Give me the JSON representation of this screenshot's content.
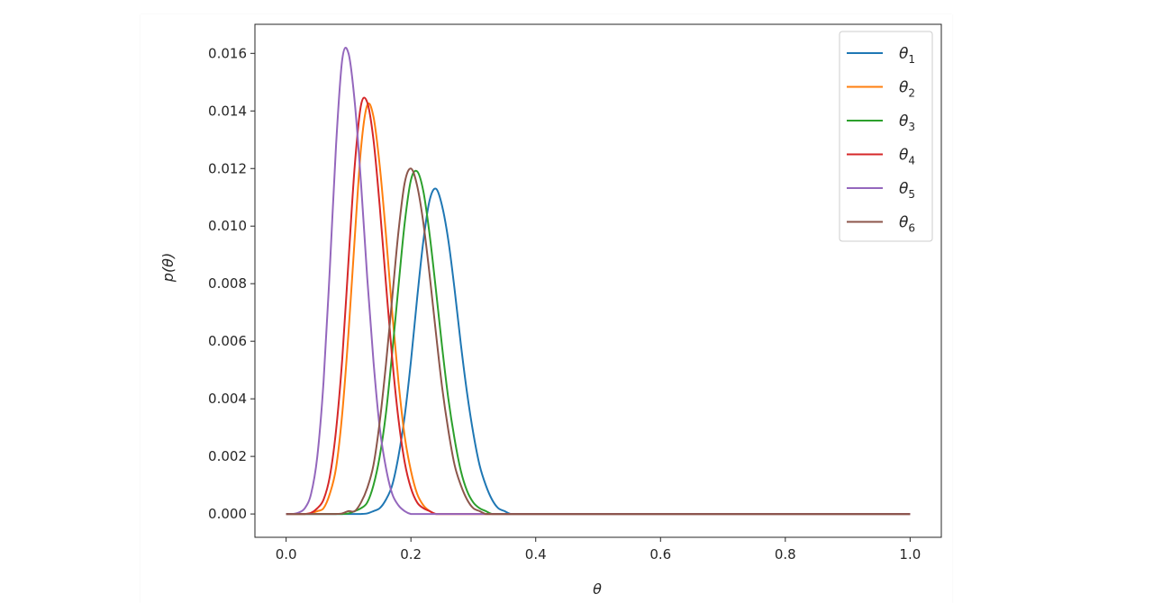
{
  "chart_data": {
    "type": "line",
    "title": "",
    "xlabel": "θ",
    "ylabel": "p(θ)",
    "xlim": [
      -0.05,
      1.05
    ],
    "ylim": [
      -0.00081,
      0.01701
    ],
    "xticks": [
      "0.0",
      "0.2",
      "0.4",
      "0.6",
      "0.8",
      "1.0"
    ],
    "yticks": [
      "0.000",
      "0.002",
      "0.004",
      "0.006",
      "0.008",
      "0.010",
      "0.012",
      "0.014",
      "0.016"
    ],
    "grid": false,
    "legend_position": "top-right",
    "x": [
      0,
      0.01,
      0.02,
      0.03,
      0.04,
      0.05,
      0.06,
      0.07,
      0.08,
      0.09,
      0.1,
      0.11,
      0.12,
      0.13,
      0.14,
      0.15,
      0.16,
      0.17,
      0.18,
      0.19,
      0.2,
      0.21,
      0.22,
      0.23,
      0.24,
      0.25,
      0.26,
      0.27,
      0.28,
      0.29,
      0.3,
      0.31,
      0.32,
      0.33,
      0.34,
      0.35,
      0.36,
      0.37,
      0.38,
      0.39,
      0.4,
      1.0
    ],
    "series": [
      {
        "name": "θ1",
        "base": "θ",
        "sub": "1",
        "color": "#1f77b4",
        "values": [
          0,
          0,
          0,
          0,
          0,
          0,
          0,
          0,
          0,
          0,
          0,
          0,
          0,
          2e-05,
          0.0001,
          0.0002,
          0.0005,
          0.001,
          0.002,
          0.0034,
          0.0053,
          0.0075,
          0.0095,
          0.0109,
          0.0113,
          0.0107,
          0.0095,
          0.0078,
          0.0059,
          0.0042,
          0.0028,
          0.0017,
          0.001,
          0.0005,
          0.0002,
          0.0001,
          0,
          0,
          0,
          0,
          0,
          0
        ]
      },
      {
        "name": "θ2",
        "base": "θ",
        "sub": "2",
        "color": "#ff7f0e",
        "values": [
          0,
          0,
          0,
          0,
          2e-05,
          0.0001,
          0.0002,
          0.0007,
          0.0016,
          0.0035,
          0.0063,
          0.0096,
          0.0127,
          0.0142,
          0.0138,
          0.0121,
          0.0097,
          0.007,
          0.0046,
          0.0027,
          0.0015,
          0.0007,
          0.0003,
          0.0001,
          0,
          0,
          0,
          0,
          0,
          0,
          0,
          0,
          0,
          0,
          0,
          0,
          0,
          0,
          0,
          0,
          0,
          0
        ]
      },
      {
        "name": "θ3",
        "base": "θ",
        "sub": "3",
        "color": "#2ca02c",
        "values": [
          0,
          0,
          0,
          0,
          0,
          0,
          0,
          0,
          0,
          0,
          2e-05,
          0.0001,
          0.0002,
          0.0004,
          0.001,
          0.002,
          0.0035,
          0.0056,
          0.0079,
          0.0101,
          0.0116,
          0.0119,
          0.0112,
          0.0097,
          0.0078,
          0.0058,
          0.004,
          0.0026,
          0.0015,
          0.0008,
          0.0004,
          0.0002,
          0.0001,
          0,
          0,
          0,
          0,
          0,
          0,
          0,
          0,
          0
        ]
      },
      {
        "name": "θ4",
        "base": "θ",
        "sub": "4",
        "color": "#d62728",
        "values": [
          0,
          0,
          0,
          0,
          4e-05,
          0.0002,
          0.0005,
          0.0013,
          0.0029,
          0.0054,
          0.0088,
          0.0121,
          0.0142,
          0.0143,
          0.013,
          0.0107,
          0.008,
          0.0054,
          0.0033,
          0.0018,
          0.0009,
          0.0004,
          0.0002,
          0.0001,
          0,
          0,
          0,
          0,
          0,
          0,
          0,
          0,
          0,
          0,
          0,
          0,
          0,
          0,
          0,
          0,
          0,
          0
        ]
      },
      {
        "name": "θ5",
        "base": "θ",
        "sub": "5",
        "color": "#9467bd",
        "values": [
          0,
          0,
          5e-05,
          0.0002,
          0.0007,
          0.002,
          0.0046,
          0.0085,
          0.0128,
          0.0158,
          0.016,
          0.0143,
          0.0115,
          0.0082,
          0.0053,
          0.003,
          0.0016,
          0.0007,
          0.0003,
          0.0001,
          0,
          0,
          0,
          0,
          0,
          0,
          0,
          0,
          0,
          0,
          0,
          0,
          0,
          0,
          0,
          0,
          0,
          0,
          0,
          0,
          0,
          0
        ]
      },
      {
        "name": "θ6",
        "base": "θ",
        "sub": "6",
        "color": "#8c564b",
        "values": [
          0,
          0,
          0,
          0,
          0,
          0,
          0,
          0,
          0,
          2e-05,
          0.0001,
          0.0001,
          0.0004,
          0.0009,
          0.0017,
          0.0032,
          0.0052,
          0.0075,
          0.0098,
          0.0115,
          0.012,
          0.0114,
          0.0101,
          0.0083,
          0.0063,
          0.0044,
          0.0029,
          0.0017,
          0.001,
          0.0005,
          0.0002,
          0.0001,
          0,
          0,
          0,
          0,
          0,
          0,
          0,
          0,
          0,
          0
        ]
      }
    ]
  }
}
